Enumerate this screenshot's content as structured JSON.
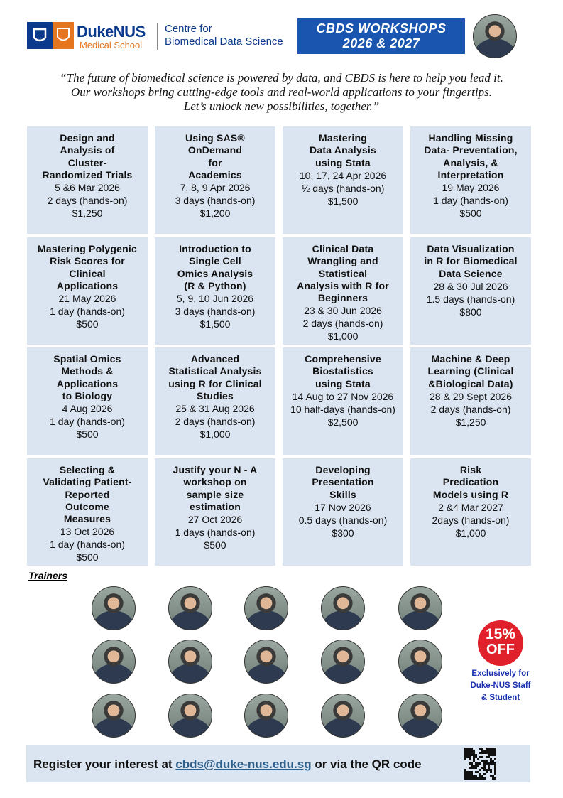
{
  "header": {
    "logo_brand_1": "Duke",
    "logo_brand_2": "NUS",
    "logo_sub": "Medical School",
    "centre_line_1": "Centre for",
    "centre_line_2": "Biomedical Data Science",
    "banner_line_1": "CBDS WORKSHOPS",
    "banner_line_2": "2026 & 2027"
  },
  "quote": [
    "“The future of biomedical science is powered by data, and CBDS is here to help you lead it.",
    "Our workshops bring cutting-edge tools and real-world applications to your fingertips.",
    "Let’s unlock new possibilities, together.”"
  ],
  "workshops": [
    {
      "title": [
        "Design and",
        "Analysis of",
        "Cluster-",
        "Randomized Trials"
      ],
      "date": "5 &6 Mar 2026",
      "duration": "2 days (hands-on)",
      "price": "$1,250"
    },
    {
      "title": [
        "Using SAS®",
        "OnDemand",
        "for",
        "Academics"
      ],
      "date": "7, 8, 9 Apr 2026",
      "duration": "3 days (hands-on)",
      "price": "$1,200"
    },
    {
      "title": [
        "Mastering",
        "Data Analysis",
        "using Stata"
      ],
      "date": "10, 17, 24 Apr 2026",
      "duration": "½ days (hands-on)",
      "price": "$1,500"
    },
    {
      "title": [
        "Handling Missing",
        "Data- Preventation,",
        "Analysis, &",
        "Interpretation"
      ],
      "date": "19 May 2026",
      "duration": "1 day (hands-on)",
      "price": "$500"
    },
    {
      "title": [
        "Mastering Polygenic",
        "Risk Scores for",
        "Clinical",
        "Applications"
      ],
      "date": "21 May 2026",
      "duration": "1 day (hands-on)",
      "price": "$500"
    },
    {
      "title": [
        "Introduction to",
        "Single Cell",
        "Omics Analysis",
        "(R & Python)"
      ],
      "date": "5, 9, 10 Jun 2026",
      "duration": "3 days (hands-on)",
      "price": "$1,500"
    },
    {
      "title": [
        "Clinical Data",
        "Wrangling and",
        "Statistical",
        "Analysis with R for",
        "Beginners"
      ],
      "date": "23 & 30 Jun 2026",
      "duration": "2 days (hands-on)",
      "price": "$1,000"
    },
    {
      "title": [
        "Data Visualization",
        "in R for Biomedical",
        "Data Science"
      ],
      "date": "28 & 30 Jul 2026",
      "duration": "1.5 days (hands-on)",
      "price": "$800"
    },
    {
      "title": [
        "Spatial Omics",
        "Methods &",
        "Applications",
        "to Biology"
      ],
      "date": "4 Aug 2026",
      "duration": "1 day (hands-on)",
      "price": "$500"
    },
    {
      "title": [
        "Advanced",
        "Statistical Analysis",
        "using R for Clinical",
        "Studies"
      ],
      "date": "25 & 31 Aug 2026",
      "duration": "2 days (hands-on)",
      "price": "$1,000"
    },
    {
      "title": [
        "Comprehensive",
        "Biostatistics",
        "using Stata"
      ],
      "date": "14 Aug to 27 Nov 2026",
      "duration": "10 half-days (hands-on)",
      "price": "$2,500"
    },
    {
      "title": [
        "Machine & Deep",
        "Learning (Clinical",
        "&Biological Data)"
      ],
      "date": "28 & 29 Sept 2026",
      "duration": "2 days (hands-on)",
      "price": "$1,250"
    },
    {
      "title": [
        "Selecting &",
        "Validating Patient-",
        "Reported",
        "Outcome",
        "Measures"
      ],
      "date": "13 Oct 2026",
      "duration": "1 day (hands-on)",
      "price": "$500"
    },
    {
      "title": [
        "Justify your N - A",
        "workshop on",
        "sample size",
        "estimation"
      ],
      "date": "27 Oct 2026",
      "duration": "1 days (hands-on)",
      "price": "$500"
    },
    {
      "title": [
        "Developing",
        "Presentation",
        "Skills"
      ],
      "date": "17 Nov 2026",
      "duration": "0.5 days (hands-on)",
      "price": "$300"
    },
    {
      "title": [
        "Risk",
        "Predication",
        "Models using R"
      ],
      "date": "2 &4 Mar 2027",
      "duration": "2days (hands-on)",
      "price": "$1,000"
    }
  ],
  "trainers_label": "Trainers",
  "badge": {
    "percent": "15%",
    "off": "OFF",
    "note": [
      "Exclusively for",
      "Duke-NUS Staff",
      "& Student"
    ]
  },
  "footer": {
    "text_before": "Register your interest at ",
    "email": "cbds@duke-nus.edu.sg",
    "text_after": " or via the QR code"
  }
}
